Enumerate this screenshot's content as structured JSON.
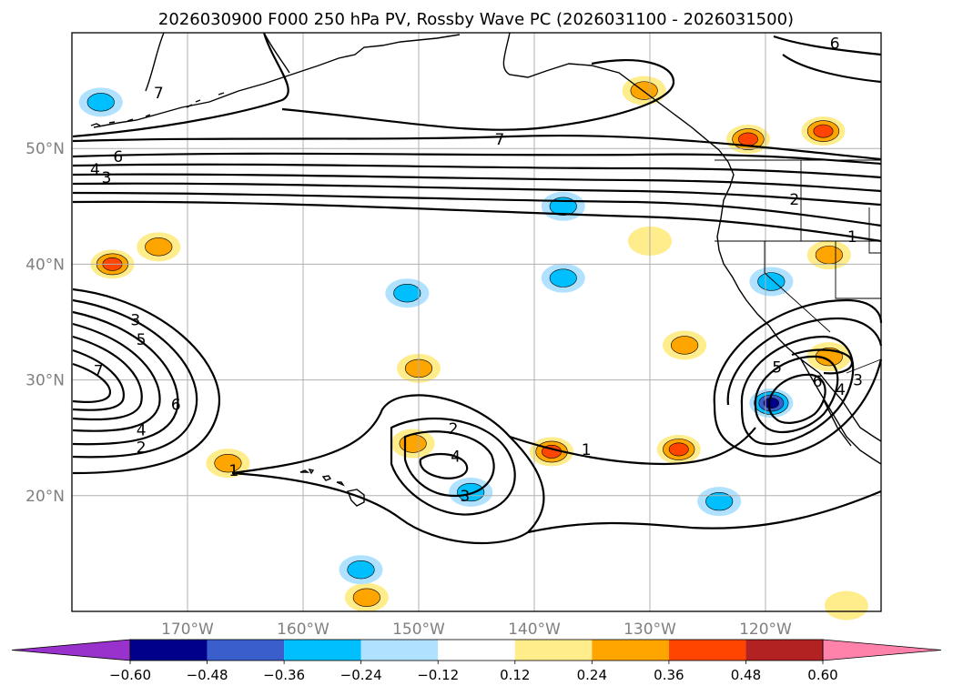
{
  "chart_data": {
    "type": "map-contour",
    "title": "2026030900 F000 250 hPa PV, Rossby Wave PC (2026031100 - 2026031500)",
    "extent": {
      "lon": [
        -180,
        -110
      ],
      "lat": [
        10,
        60
      ]
    },
    "lon_ticks": [
      {
        "value": -170,
        "label": "170°W"
      },
      {
        "value": -160,
        "label": "160°W"
      },
      {
        "value": -150,
        "label": "150°W"
      },
      {
        "value": -140,
        "label": "140°W"
      },
      {
        "value": -130,
        "label": "130°W"
      },
      {
        "value": -120,
        "label": "120°W"
      }
    ],
    "lat_ticks": [
      {
        "value": 20,
        "label": "20°N"
      },
      {
        "value": 30,
        "label": "30°N"
      },
      {
        "value": 40,
        "label": "40°N"
      },
      {
        "value": 50,
        "label": "50°N"
      }
    ],
    "contour_labels": [
      {
        "text": "6",
        "lon": -176,
        "lat": 49.3
      },
      {
        "text": "4",
        "lon": -178,
        "lat": 48.2
      },
      {
        "text": "3",
        "lon": -177,
        "lat": 47.5
      },
      {
        "text": "7",
        "lon": -143,
        "lat": 50.8
      },
      {
        "text": "6",
        "lon": -114,
        "lat": 59.1
      },
      {
        "text": "2",
        "lon": -117.5,
        "lat": 45.6
      },
      {
        "text": "1",
        "lon": -112.5,
        "lat": 42.4
      },
      {
        "text": "7",
        "lon": -172.5,
        "lat": 54.8
      },
      {
        "text": "3",
        "lon": -174.5,
        "lat": 35.2
      },
      {
        "text": "5",
        "lon": -174.0,
        "lat": 33.5
      },
      {
        "text": "7",
        "lon": -177.7,
        "lat": 30.8
      },
      {
        "text": "6",
        "lon": -171.0,
        "lat": 27.9
      },
      {
        "text": "4",
        "lon": -174.0,
        "lat": 25.7
      },
      {
        "text": "2",
        "lon": -174.0,
        "lat": 24.2
      },
      {
        "text": "1",
        "lon": -166.0,
        "lat": 22.2
      },
      {
        "text": "2",
        "lon": -147.0,
        "lat": 25.8
      },
      {
        "text": "4",
        "lon": -146.8,
        "lat": 23.4
      },
      {
        "text": "3",
        "lon": -146.0,
        "lat": 20.0
      },
      {
        "text": "1",
        "lon": -135.5,
        "lat": 24.0
      },
      {
        "text": "5",
        "lon": -119.0,
        "lat": 31.1
      },
      {
        "text": "6",
        "lon": -115.5,
        "lat": 29.9
      },
      {
        "text": "4",
        "lon": -113.5,
        "lat": 29.2
      },
      {
        "text": "3",
        "lon": -112.0,
        "lat": 30.0
      }
    ],
    "pv_anomaly_blobs": [
      {
        "lon": -176.5,
        "lat": 40.0,
        "value": 0.4
      },
      {
        "lon": -172.5,
        "lat": 41.5,
        "value": 0.3
      },
      {
        "lon": -166.5,
        "lat": 22.8,
        "value": 0.25
      },
      {
        "lon": -150.0,
        "lat": 31.0,
        "value": 0.3
      },
      {
        "lon": -150.5,
        "lat": 24.5,
        "value": 0.3
      },
      {
        "lon": -138.5,
        "lat": 23.8,
        "value": 0.4
      },
      {
        "lon": -127.5,
        "lat": 24.0,
        "value": 0.4
      },
      {
        "lon": -127.0,
        "lat": 33.0,
        "value": 0.28
      },
      {
        "lon": -130.5,
        "lat": 55.0,
        "value": 0.25
      },
      {
        "lon": -121.5,
        "lat": 50.8,
        "value": 0.4
      },
      {
        "lon": -115.0,
        "lat": 51.5,
        "value": 0.4
      },
      {
        "lon": -130.0,
        "lat": 42.0,
        "value": 0.2
      },
      {
        "lon": -114.5,
        "lat": 40.8,
        "value": 0.25
      },
      {
        "lon": -114.5,
        "lat": 32.0,
        "value": 0.25
      },
      {
        "lon": -154.5,
        "lat": 11.2,
        "value": 0.25
      },
      {
        "lon": -113.0,
        "lat": 10.5,
        "value": 0.2
      },
      {
        "lon": -137.5,
        "lat": 38.8,
        "value": -0.35
      },
      {
        "lon": -137.5,
        "lat": 45.0,
        "value": -0.3
      },
      {
        "lon": -151.0,
        "lat": 37.5,
        "value": -0.3
      },
      {
        "lon": -177.5,
        "lat": 54.0,
        "value": -0.3
      },
      {
        "lon": -145.5,
        "lat": 20.3,
        "value": -0.25
      },
      {
        "lon": -124.0,
        "lat": 19.5,
        "value": -0.35
      },
      {
        "lon": -155.0,
        "lat": 13.6,
        "value": -0.25
      },
      {
        "lon": -119.5,
        "lat": 38.5,
        "value": -0.35
      },
      {
        "lon": -119.5,
        "lat": 28.0,
        "value": -0.5
      }
    ],
    "colorbar": {
      "levels": [
        -0.6,
        -0.48,
        -0.36,
        -0.24,
        -0.12,
        0.12,
        0.24,
        0.36,
        0.48,
        0.6
      ],
      "labels": [
        "−0.60",
        "−0.48",
        "−0.36",
        "−0.24",
        "−0.12",
        "0.12",
        "0.24",
        "0.36",
        "0.48",
        "0.60"
      ],
      "colors": [
        "#9932cc",
        "#00008b",
        "#3a5fcd",
        "#00bfff",
        "#b0e2ff",
        "#ffffff",
        "#ffec8b",
        "#ffa500",
        "#ff4500",
        "#b22222",
        "#ff82ab"
      ]
    }
  }
}
